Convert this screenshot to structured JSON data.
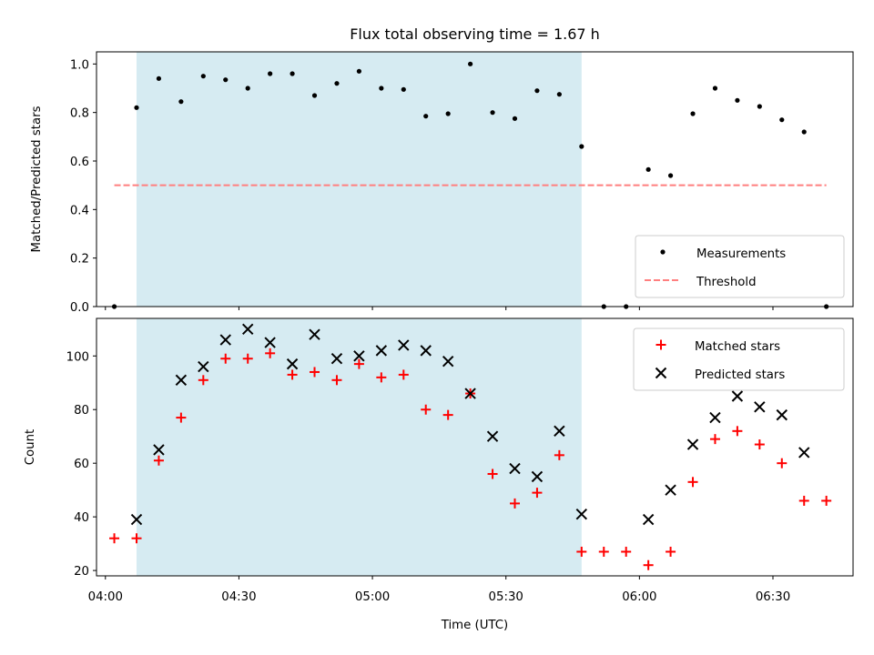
{
  "chart_data": [
    {
      "type": "scatter",
      "title": "Flux total observing time = 1.67 h",
      "xlabel": "",
      "ylabel": "Matched/Predicted stars",
      "xlim": [
        "03:58",
        "06:48"
      ],
      "ylim": [
        0,
        1.05
      ],
      "yticks": [
        0.0,
        0.2,
        0.4,
        0.6,
        0.8,
        1.0
      ],
      "ytick_labels": [
        "0.0",
        "0.2",
        "0.4",
        "0.6",
        "0.8",
        "1.0"
      ],
      "shaded_interval": [
        "04:07",
        "05:47"
      ],
      "shade_color": "#add8e6",
      "grid": false,
      "legend_position": "lower-right",
      "series": [
        {
          "name": "Measurements",
          "marker": "dot",
          "color": "#000000",
          "x": [
            "04:02",
            "04:07",
            "04:12",
            "04:17",
            "04:22",
            "04:27",
            "04:32",
            "04:37",
            "04:42",
            "04:47",
            "04:52",
            "04:57",
            "05:02",
            "05:07",
            "05:12",
            "05:17",
            "05:22",
            "05:27",
            "05:32",
            "05:37",
            "05:42",
            "05:47",
            "05:52",
            "05:57",
            "06:02",
            "06:07",
            "06:12",
            "06:17",
            "06:22",
            "06:27",
            "06:32",
            "06:37",
            "06:42"
          ],
          "y": [
            0.0,
            0.82,
            0.94,
            0.845,
            0.95,
            0.935,
            0.9,
            0.96,
            0.96,
            0.87,
            0.92,
            0.97,
            0.9,
            0.895,
            0.785,
            0.795,
            1.0,
            0.8,
            0.775,
            0.89,
            0.875,
            0.66,
            0.0,
            0.0,
            0.565,
            0.54,
            0.795,
            0.9,
            0.85,
            0.825,
            0.77,
            0.72,
            0.0
          ]
        },
        {
          "name": "Threshold",
          "line_style": "dashed",
          "color": "#ff7f7f",
          "x": [
            "04:02",
            "06:42"
          ],
          "y": [
            0.5,
            0.5
          ]
        }
      ]
    },
    {
      "type": "scatter",
      "title": "",
      "xlabel": "Time (UTC)",
      "ylabel": "Count",
      "xlim": [
        "03:58",
        "06:48"
      ],
      "ylim": [
        18,
        114
      ],
      "yticks": [
        20,
        40,
        60,
        80,
        100
      ],
      "ytick_labels": [
        "20",
        "40",
        "60",
        "80",
        "100"
      ],
      "xticks": [
        "04:00",
        "04:30",
        "05:00",
        "05:30",
        "06:00",
        "06:30"
      ],
      "xtick_labels": [
        "04:00",
        "04:30",
        "05:00",
        "05:30",
        "06:00",
        "06:30"
      ],
      "shaded_interval": [
        "04:07",
        "05:47"
      ],
      "shade_color": "#add8e6",
      "grid": false,
      "legend_position": "upper-right",
      "series": [
        {
          "name": "Matched stars",
          "marker": "plus",
          "color": "#ff0000",
          "x": [
            "04:02",
            "04:07",
            "04:12",
            "04:17",
            "04:22",
            "04:27",
            "04:32",
            "04:37",
            "04:42",
            "04:47",
            "04:52",
            "04:57",
            "05:02",
            "05:07",
            "05:12",
            "05:17",
            "05:22",
            "05:27",
            "05:32",
            "05:37",
            "05:42",
            "05:47",
            "05:52",
            "05:57",
            "06:02",
            "06:07",
            "06:12",
            "06:17",
            "06:22",
            "06:27",
            "06:32",
            "06:37",
            "06:42"
          ],
          "y": [
            32,
            32,
            61,
            77,
            91,
            99,
            99,
            101,
            93,
            94,
            91,
            97,
            92,
            93,
            80,
            78,
            86,
            56,
            45,
            49,
            63,
            27,
            27,
            27,
            22,
            27,
            53,
            69,
            72,
            67,
            60,
            46,
            46
          ]
        },
        {
          "name": "Predicted stars",
          "marker": "x",
          "color": "#000000",
          "x": [
            "04:07",
            "04:12",
            "04:17",
            "04:22",
            "04:27",
            "04:32",
            "04:37",
            "04:42",
            "04:47",
            "04:52",
            "04:57",
            "05:02",
            "05:07",
            "05:12",
            "05:17",
            "05:22",
            "05:27",
            "05:32",
            "05:37",
            "05:42",
            "05:47",
            "06:02",
            "06:07",
            "06:12",
            "06:17",
            "06:22",
            "06:27",
            "06:32",
            "06:37"
          ],
          "y": [
            39,
            65,
            91,
            96,
            106,
            110,
            105,
            97,
            108,
            99,
            100,
            102,
            104,
            102,
            98,
            86,
            70,
            58,
            55,
            72,
            41,
            39,
            50,
            67,
            77,
            85,
            81,
            78,
            64
          ]
        }
      ]
    }
  ]
}
